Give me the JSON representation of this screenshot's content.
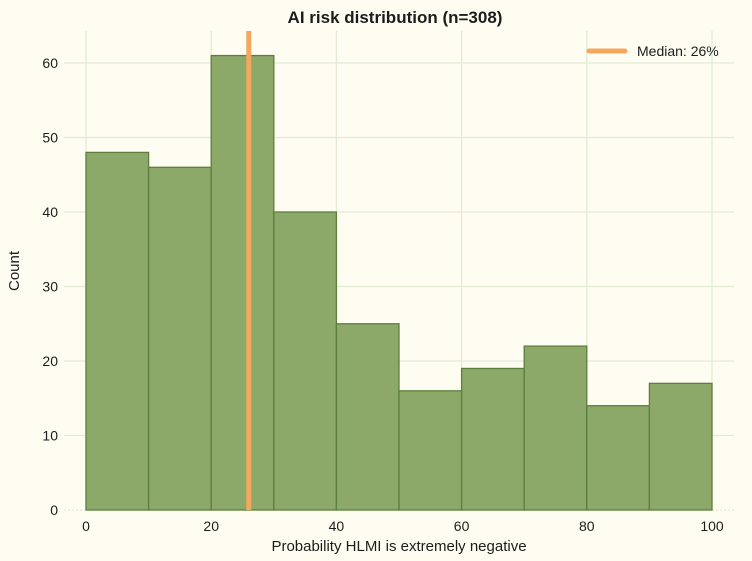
{
  "colors": {
    "background": "#fffdf2",
    "grid": "#e0ecd4",
    "bar_fill": "#8ca96a",
    "bar_edge": "#5d7f3c",
    "median_line": "#f4a75e",
    "text": "#1c1c1c"
  },
  "chart_data": {
    "type": "bar",
    "subtype": "histogram",
    "title": "AI risk distribution (n=308)",
    "xlabel": "Probability HLMI is extremely negative",
    "ylabel": "Count",
    "n": 308,
    "bin_edges": [
      0,
      10,
      20,
      30,
      40,
      50,
      60,
      70,
      80,
      90,
      100
    ],
    "values": [
      48,
      46,
      61,
      40,
      25,
      16,
      19,
      22,
      14,
      17
    ],
    "x_ticks": [
      0,
      20,
      40,
      60,
      80,
      100
    ],
    "y_ticks": [
      0,
      10,
      20,
      30,
      40,
      50,
      60
    ],
    "xlim": [
      0,
      100
    ],
    "ylim": [
      0,
      64.3
    ],
    "grid": true,
    "median": 26,
    "legend": {
      "label": "Median: 26%",
      "position": "top-right"
    }
  }
}
